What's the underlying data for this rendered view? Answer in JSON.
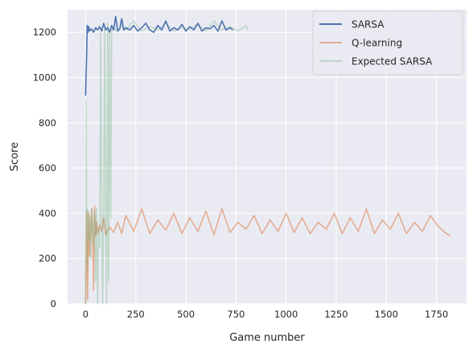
{
  "chart_data": {
    "type": "line",
    "xlabel": "Game number",
    "ylabel": "Score",
    "xlim": [
      -90,
      1900
    ],
    "ylim": [
      0,
      1300
    ],
    "xticks": [
      0,
      250,
      500,
      750,
      1000,
      1250,
      1500,
      1750
    ],
    "yticks": [
      0,
      200,
      400,
      600,
      800,
      1000,
      1200
    ],
    "grid": true,
    "legend_position": "top-right",
    "series": [
      {
        "name": "SARSA",
        "color": "#4c72b0",
        "alpha": 1.0,
        "x": [
          0,
          5,
          8,
          12,
          15,
          20,
          30,
          40,
          50,
          60,
          70,
          80,
          90,
          100,
          110,
          120,
          130,
          140,
          150,
          160,
          170,
          180,
          190,
          200,
          220,
          240,
          260,
          280,
          300,
          320,
          340,
          360,
          380,
          400,
          420,
          440,
          460,
          480,
          500,
          520,
          540,
          560,
          580,
          600,
          620,
          640,
          660,
          680,
          700,
          720,
          735
        ],
        "y": [
          920,
          1100,
          1230,
          1200,
          1225,
          1205,
          1215,
          1200,
          1220,
          1210,
          1225,
          1205,
          1240,
          1210,
          1220,
          1200,
          1230,
          1210,
          1270,
          1205,
          1215,
          1260,
          1210,
          1220,
          1210,
          1230,
          1205,
          1220,
          1240,
          1210,
          1200,
          1230,
          1210,
          1250,
          1205,
          1220,
          1210,
          1235,
          1205,
          1225,
          1210,
          1240,
          1205,
          1220,
          1215,
          1230,
          1205,
          1250,
          1210,
          1220,
          1210
        ]
      },
      {
        "name": "Q-learning",
        "color": "#dd8452",
        "alpha": 0.6,
        "x": [
          0,
          5,
          10,
          15,
          20,
          25,
          30,
          35,
          40,
          45,
          50,
          55,
          60,
          70,
          80,
          90,
          100,
          120,
          140,
          160,
          180,
          200,
          240,
          280,
          320,
          360,
          400,
          440,
          480,
          520,
          560,
          600,
          640,
          680,
          720,
          760,
          800,
          840,
          880,
          920,
          960,
          1000,
          1040,
          1080,
          1120,
          1160,
          1200,
          1240,
          1280,
          1320,
          1360,
          1400,
          1440,
          1480,
          1520,
          1560,
          1600,
          1640,
          1680,
          1720,
          1760,
          1800,
          1820
        ],
        "y": [
          0,
          410,
          20,
          400,
          210,
          330,
          420,
          300,
          60,
          430,
          300,
          360,
          310,
          350,
          320,
          380,
          305,
          340,
          315,
          360,
          310,
          390,
          320,
          420,
          310,
          370,
          325,
          400,
          310,
          380,
          320,
          410,
          305,
          420,
          315,
          360,
          330,
          390,
          310,
          370,
          320,
          400,
          315,
          380,
          310,
          360,
          330,
          400,
          310,
          380,
          320,
          420,
          310,
          370,
          330,
          400,
          310,
          360,
          320,
          390,
          340,
          310,
          300
        ]
      },
      {
        "name": "Expected SARSA",
        "color": "#55a868",
        "alpha": 0.3,
        "x": [
          0,
          3,
          5,
          8,
          10,
          14,
          18,
          22,
          26,
          30,
          34,
          38,
          42,
          46,
          50,
          55,
          60,
          65,
          70,
          75,
          80,
          85,
          90,
          95,
          100,
          105,
          110,
          115,
          120,
          125,
          130,
          140,
          160,
          180,
          200,
          240,
          280,
          320,
          360,
          400,
          440,
          480,
          520,
          560,
          600,
          640,
          680,
          720,
          760,
          800,
          810
        ],
        "y": [
          0,
          900,
          300,
          420,
          150,
          410,
          280,
          380,
          200,
          420,
          330,
          260,
          410,
          380,
          100,
          420,
          0,
          330,
          250,
          1200,
          380,
          0,
          420,
          1230,
          350,
          0,
          1240,
          100,
          1200,
          380,
          1210,
          1220,
          1205,
          1230,
          1210,
          1250,
          1205,
          1225,
          1210,
          1240,
          1205,
          1220,
          1215,
          1235,
          1205,
          1250,
          1210,
          1225,
          1205,
          1230,
          1210
        ]
      }
    ]
  }
}
